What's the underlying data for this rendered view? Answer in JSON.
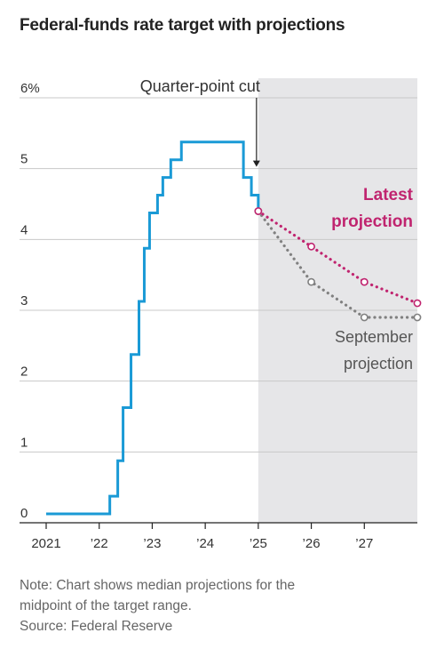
{
  "title": "Federal-funds rate target with projections",
  "note": "Note: Chart shows median projections for the",
  "note_line2": "midpoint of the target range.",
  "source": "Source: Federal Reserve",
  "chart_data": {
    "type": "line",
    "title": "Federal-funds rate target with projections",
    "x_range": [
      2021.0,
      2028.0
    ],
    "ylim": [
      0,
      6
    ],
    "y_ticks": [
      0,
      1,
      2,
      3,
      4,
      5,
      6
    ],
    "y_tick_labels": [
      "0",
      "1",
      "2",
      "3",
      "4",
      "5",
      "6%"
    ],
    "x_ticks": [
      2021,
      2022,
      2023,
      2024,
      2025,
      2026,
      2027
    ],
    "x_tick_labels": [
      "2021",
      "’22",
      "’23",
      "’24",
      "’25",
      "’26",
      "’27"
    ],
    "grid": "horizontal",
    "shaded_region": [
      2025.0,
      2028.0
    ],
    "series": [
      {
        "kind": "step",
        "color": "#1a9ad6",
        "points": [
          [
            2021.0,
            0.125
          ],
          [
            2022.2,
            0.125
          ],
          [
            2022.2,
            0.375
          ],
          [
            2022.35,
            0.375
          ],
          [
            2022.35,
            0.875
          ],
          [
            2022.45,
            0.875
          ],
          [
            2022.45,
            1.625
          ],
          [
            2022.6,
            1.625
          ],
          [
            2022.6,
            2.375
          ],
          [
            2022.75,
            2.375
          ],
          [
            2022.75,
            3.125
          ],
          [
            2022.85,
            3.125
          ],
          [
            2022.85,
            3.875
          ],
          [
            2022.95,
            3.875
          ],
          [
            2022.95,
            4.375
          ],
          [
            2023.1,
            4.375
          ],
          [
            2023.1,
            4.625
          ],
          [
            2023.2,
            4.625
          ],
          [
            2023.2,
            4.875
          ],
          [
            2023.35,
            4.875
          ],
          [
            2023.35,
            5.125
          ],
          [
            2023.55,
            5.125
          ],
          [
            2023.55,
            5.375
          ],
          [
            2024.72,
            5.375
          ],
          [
            2024.72,
            4.875
          ],
          [
            2024.87,
            4.875
          ],
          [
            2024.87,
            4.625
          ],
          [
            2025.0,
            4.625
          ],
          [
            2025.0,
            4.375
          ]
        ]
      },
      {
        "name": "Latest projection",
        "kind": "dotted",
        "color": "#c0246f",
        "x": [
          2025.0,
          2026.0,
          2027.0,
          2028.0
        ],
        "y": [
          4.4,
          3.9,
          3.4,
          3.1
        ]
      },
      {
        "name": "September projection",
        "kind": "dotted",
        "color": "#808080",
        "x": [
          2025.0,
          2026.0,
          2027.0,
          2028.0
        ],
        "y": [
          4.4,
          3.4,
          2.9,
          2.9
        ]
      }
    ],
    "annotations": [
      {
        "text": "Quarter-point cut",
        "x": 2025.0,
        "y": 4.875
      }
    ],
    "labels": {
      "latest_line1": "Latest",
      "latest_line2": "projection",
      "september_line1": "September",
      "september_line2": "projection"
    }
  }
}
